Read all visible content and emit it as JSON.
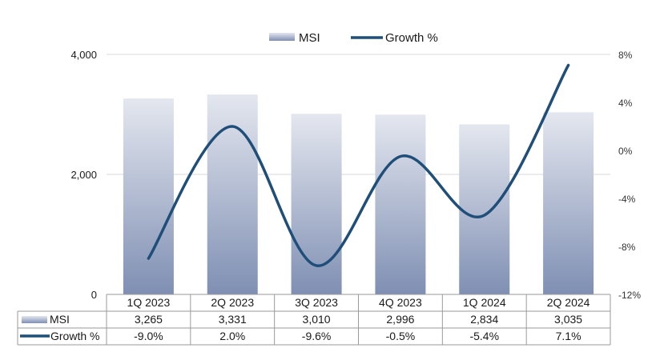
{
  "chart_data": {
    "type": "bar",
    "categories": [
      "1Q 2023",
      "2Q 2023",
      "3Q 2023",
      "4Q 2023",
      "1Q 2024",
      "2Q 2024"
    ],
    "series": [
      {
        "name": "MSI",
        "type": "bar",
        "axis": "left",
        "values": [
          3265,
          3331,
          3010,
          2996,
          2834,
          3035
        ],
        "labels": [
          "3,265",
          "3,331",
          "3,010",
          "2,996",
          "2,834",
          "3,035"
        ]
      },
      {
        "name": "Growth %",
        "type": "line",
        "axis": "right",
        "values": [
          -9.0,
          2.0,
          -9.6,
          -0.5,
          -5.4,
          7.1
        ],
        "labels": [
          "-9.0%",
          "2.0%",
          "-9.6%",
          "-0.5%",
          "-5.4%",
          "7.1%"
        ]
      }
    ],
    "y_left": {
      "ylim": [
        0,
        4000
      ],
      "ticks": [
        0,
        2000,
        4000
      ],
      "tick_labels": [
        "0",
        "2,000",
        "4,000"
      ]
    },
    "y_right": {
      "ylim": [
        -12,
        8
      ],
      "ticks": [
        -12,
        -8,
        -4,
        0,
        4,
        8
      ],
      "tick_labels": [
        "-12%",
        "-8%",
        "-4%",
        "0%",
        "4%",
        "8%"
      ]
    },
    "legend": {
      "placement": "top-center",
      "items": [
        "MSI",
        "Growth %"
      ]
    },
    "grid": true,
    "data_table": true
  },
  "colors": {
    "bar_top": "#e4e7ef",
    "bar_bottom": "#7f8fb3",
    "line": "#1f4e79",
    "grid": "#d9d9d9",
    "table_border": "#9a9a9a"
  }
}
